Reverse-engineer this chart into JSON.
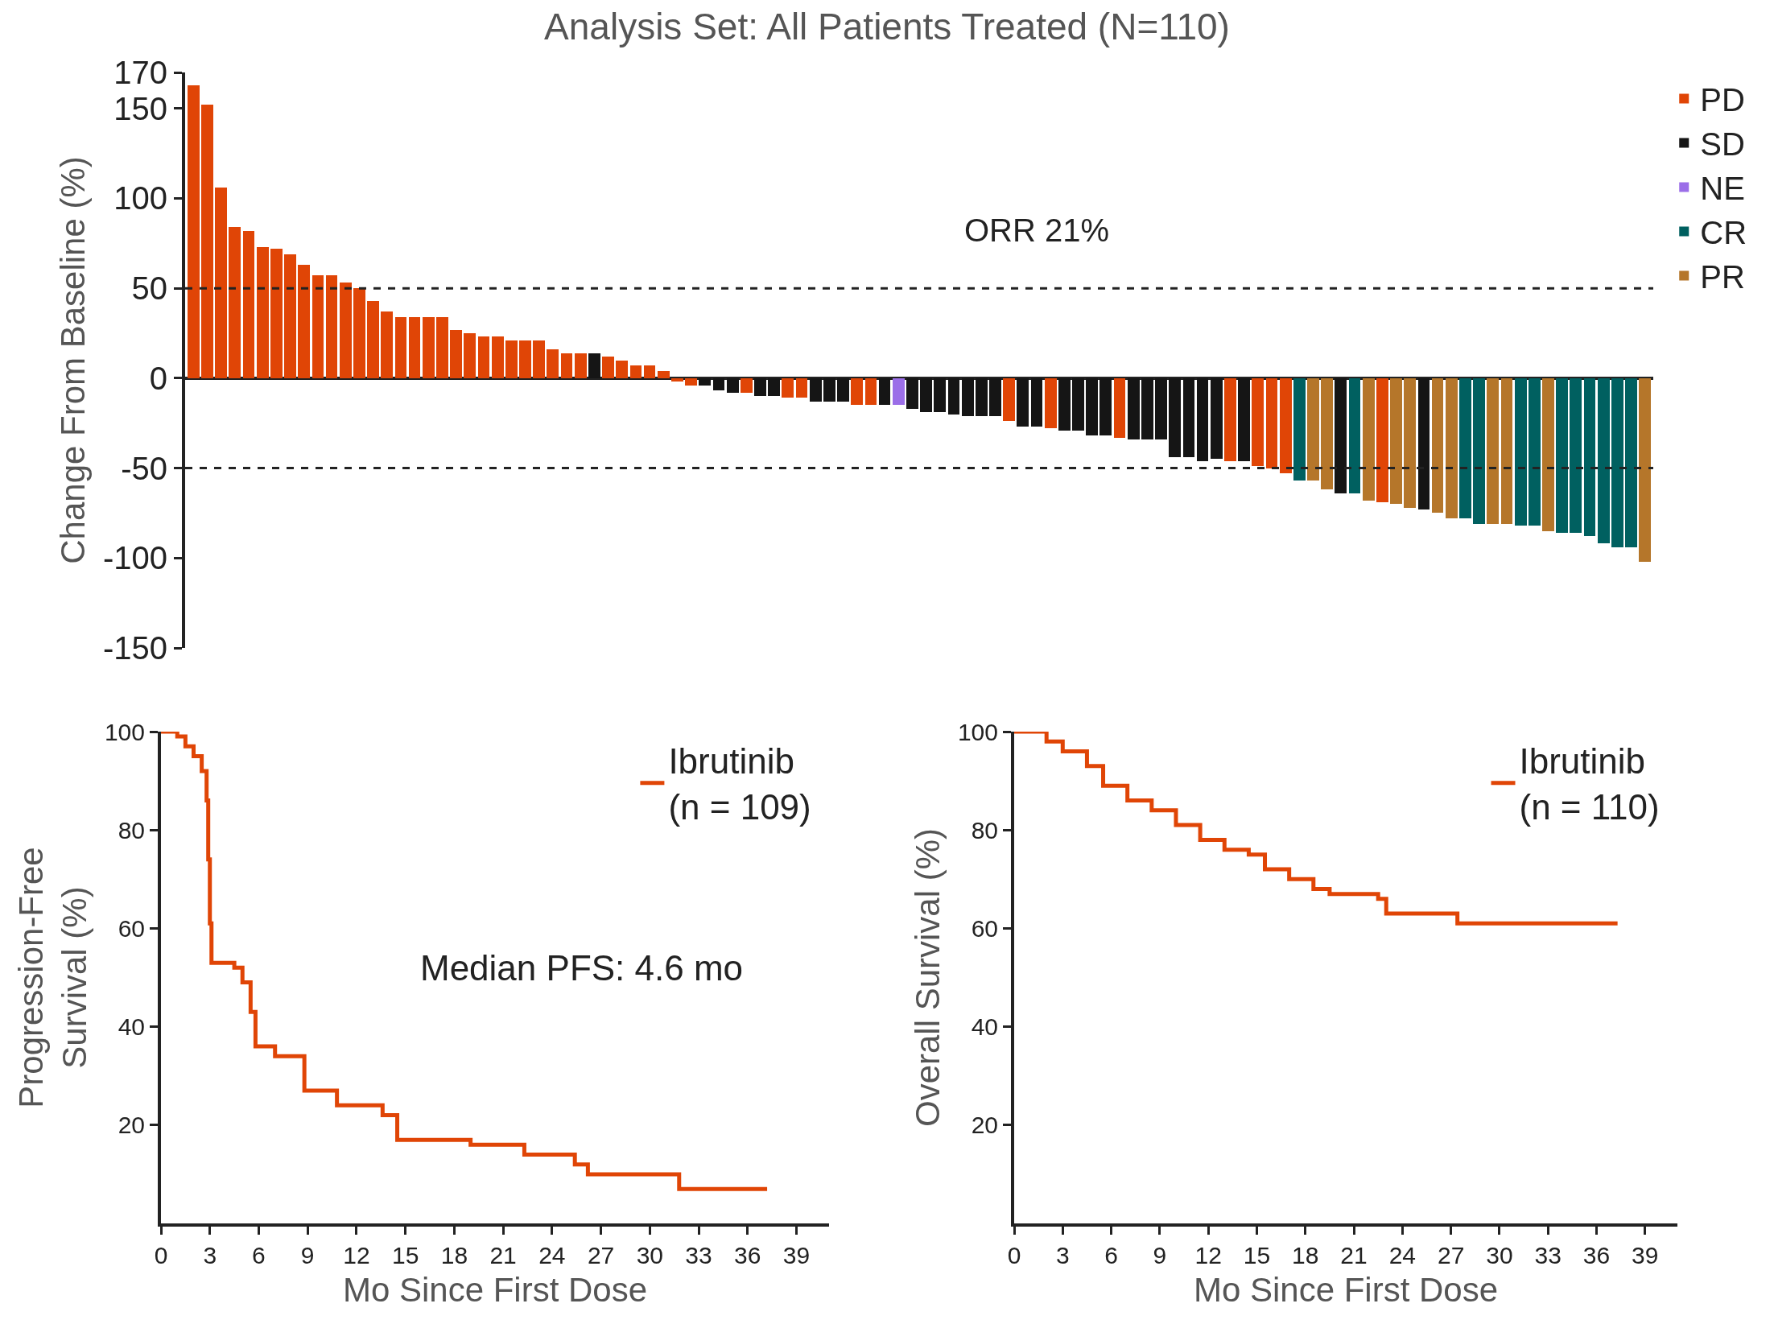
{
  "chart_data": [
    {
      "type": "bar",
      "title": "Analysis Set: All Patients Treated (N=110)",
      "ylabel": "Change From Baseline (%)",
      "categories": [
        null,
        null,
        null,
        null,
        null,
        null,
        null,
        null,
        null,
        null,
        null,
        null,
        null,
        null,
        null,
        null,
        null,
        null,
        null,
        null,
        null,
        null,
        null,
        null,
        null,
        null,
        null,
        null,
        null,
        null,
        null,
        null,
        null,
        null,
        null,
        null,
        null,
        null,
        null,
        null,
        null,
        null,
        null,
        null,
        null,
        null,
        null,
        null,
        null,
        null,
        null,
        null,
        null,
        null,
        null,
        null,
        null,
        null,
        null,
        null,
        null,
        null,
        null,
        null,
        null,
        null,
        null,
        null,
        null,
        null,
        null,
        null,
        null,
        null,
        null,
        null,
        null,
        null,
        null,
        null,
        null,
        null,
        null,
        null,
        null,
        null,
        null,
        null,
        null,
        null,
        null,
        null,
        null,
        null,
        null,
        null,
        null,
        null,
        null,
        null,
        null,
        null,
        null,
        null,
        null,
        null
      ],
      "series": [
        {
          "name": "PD",
          "color": "#e04506",
          "values": [
            163,
            152,
            106,
            84,
            82,
            73,
            72,
            69,
            63,
            57,
            57,
            53,
            50,
            43,
            37,
            34,
            34,
            34,
            34,
            27,
            25,
            23,
            23,
            21,
            21,
            21,
            16,
            14,
            14,
            null,
            12,
            10,
            7,
            7,
            4,
            -2,
            -4,
            null,
            null,
            null,
            -8,
            null,
            null,
            -11,
            -11,
            null,
            null,
            null,
            -15,
            -15,
            null,
            null,
            null,
            null,
            null,
            null,
            null,
            null,
            null,
            -24,
            null,
            null,
            -28,
            null,
            null,
            null,
            null,
            -33,
            null,
            null,
            null,
            null,
            null,
            null,
            null,
            -46,
            null,
            -49,
            -50,
            -53,
            null,
            null,
            null,
            null,
            null,
            null,
            -69,
            null,
            null,
            null,
            null,
            null,
            null,
            null,
            null,
            null,
            null,
            null,
            null,
            null,
            null,
            null,
            null,
            null,
            null,
            null
          ]
        },
        {
          "name": "SD",
          "color": "#151515",
          "values": [
            null,
            null,
            null,
            null,
            null,
            null,
            null,
            null,
            null,
            null,
            null,
            null,
            null,
            null,
            null,
            null,
            null,
            null,
            null,
            null,
            null,
            null,
            null,
            null,
            null,
            null,
            null,
            null,
            null,
            14,
            null,
            null,
            null,
            null,
            null,
            null,
            null,
            -4,
            -7,
            -8,
            null,
            -10,
            -10,
            null,
            null,
            -13,
            -13,
            -13,
            null,
            null,
            -15,
            null,
            -17,
            -19,
            -19,
            -20,
            -21,
            -21,
            -21,
            null,
            -27,
            -27,
            null,
            -29,
            -29,
            -32,
            -32,
            null,
            -34,
            -34,
            -34,
            -44,
            -44,
            -46,
            -45,
            null,
            -46,
            null,
            null,
            null,
            null,
            null,
            null,
            -64,
            null,
            null,
            null,
            null,
            null,
            -73,
            null,
            null,
            null,
            null,
            null,
            null,
            null,
            null,
            null,
            null,
            null,
            null,
            null,
            null,
            null,
            null
          ]
        },
        {
          "name": "NE",
          "color": "#9b6ee8",
          "values": [
            null,
            null,
            null,
            null,
            null,
            null,
            null,
            null,
            null,
            null,
            null,
            null,
            null,
            null,
            null,
            null,
            null,
            null,
            null,
            null,
            null,
            null,
            null,
            null,
            null,
            null,
            null,
            null,
            null,
            null,
            null,
            null,
            null,
            null,
            null,
            null,
            null,
            null,
            null,
            null,
            null,
            null,
            null,
            null,
            null,
            null,
            null,
            null,
            null,
            null,
            null,
            -15,
            null,
            null,
            null,
            null,
            null,
            null,
            null,
            null,
            null,
            null,
            null,
            null,
            null,
            null,
            null,
            null,
            null,
            null,
            null,
            null,
            null,
            null,
            null,
            null,
            null,
            null,
            null,
            null,
            null,
            null,
            null,
            null,
            null,
            null,
            null,
            null,
            null,
            null,
            null,
            null,
            null,
            null,
            null,
            null,
            null,
            null,
            null,
            null,
            null,
            null,
            null,
            null,
            null,
            null
          ]
        },
        {
          "name": "CR",
          "color": "#006060",
          "values": [
            null,
            null,
            null,
            null,
            null,
            null,
            null,
            null,
            null,
            null,
            null,
            null,
            null,
            null,
            null,
            null,
            null,
            null,
            null,
            null,
            null,
            null,
            null,
            null,
            null,
            null,
            null,
            null,
            null,
            null,
            null,
            null,
            null,
            null,
            null,
            null,
            null,
            null,
            null,
            null,
            null,
            null,
            null,
            null,
            null,
            null,
            null,
            null,
            null,
            null,
            null,
            null,
            null,
            null,
            null,
            null,
            null,
            null,
            null,
            null,
            null,
            null,
            null,
            null,
            null,
            null,
            null,
            null,
            null,
            null,
            null,
            null,
            null,
            null,
            null,
            null,
            null,
            null,
            null,
            null,
            -57,
            null,
            null,
            null,
            -64,
            null,
            null,
            null,
            null,
            null,
            null,
            null,
            -78,
            -81,
            null,
            null,
            -82,
            -82,
            null,
            -86,
            -86,
            -88,
            -92,
            -94,
            -94,
            null
          ]
        },
        {
          "name": "PR",
          "color": "#b5762a",
          "values": [
            null,
            null,
            null,
            null,
            null,
            null,
            null,
            null,
            null,
            null,
            null,
            null,
            null,
            null,
            null,
            null,
            null,
            null,
            null,
            null,
            null,
            null,
            null,
            null,
            null,
            null,
            null,
            null,
            null,
            null,
            null,
            null,
            null,
            null,
            null,
            null,
            null,
            null,
            null,
            null,
            null,
            null,
            null,
            null,
            null,
            null,
            null,
            null,
            null,
            null,
            null,
            null,
            null,
            null,
            null,
            null,
            null,
            null,
            null,
            null,
            null,
            null,
            null,
            null,
            null,
            null,
            null,
            null,
            null,
            null,
            null,
            null,
            null,
            null,
            null,
            null,
            null,
            null,
            null,
            null,
            null,
            -57,
            -62,
            null,
            null,
            -68,
            null,
            -70,
            -72,
            null,
            -75,
            -78,
            null,
            null,
            -81,
            -81,
            null,
            null,
            -85,
            null,
            null,
            null,
            null,
            null,
            null,
            -102
          ]
        }
      ],
      "ylim": [
        -150,
        170
      ],
      "yticks": [
        -150,
        -100,
        -50,
        0,
        50,
        100,
        150,
        170
      ],
      "ref_lines": [
        {
          "axis": "y",
          "value": 50,
          "line_style": "dashed",
          "color": "#222222"
        },
        {
          "axis": "y",
          "value": -50,
          "line_style": "dashed",
          "color": "#222222"
        }
      ],
      "annotations": [
        "ORR 21%"
      ],
      "legend": "right",
      "tick_labels": "y",
      "grid": false
    },
    {
      "type": "step",
      "xlabel": "Mo Since First Dose",
      "ylabel": "Progression-Free\nSurvival (%)",
      "series": [
        {
          "name": "Ibrutinib\n(n = 109)",
          "color": "#e04506",
          "x": [
            0,
            1,
            1.5,
            2,
            2.5,
            2.8,
            2.9,
            3,
            3.1,
            4.5,
            5,
            5.5,
            5.8,
            7,
            8.8,
            10.8,
            13.6,
            14.5,
            19,
            22.3,
            25.4,
            26.2,
            31.8,
            37.2
          ],
          "values": [
            100,
            99,
            97,
            95,
            92,
            86,
            74,
            61,
            53,
            52,
            49,
            43,
            36,
            34,
            27,
            24,
            22,
            17,
            16,
            14,
            12,
            10,
            7,
            7
          ]
        }
      ],
      "xlim": [
        0,
        41
      ],
      "xticks": [
        0,
        3,
        6,
        9,
        12,
        15,
        18,
        21,
        24,
        27,
        30,
        33,
        36,
        39
      ],
      "ylim": [
        0,
        100
      ],
      "yticks": [
        20,
        40,
        60,
        80,
        100
      ],
      "annotations": [
        "Median PFS: 4.6 mo"
      ],
      "legend": "top right",
      "grid": false
    },
    {
      "type": "step",
      "xlabel": "Mo Since First Dose",
      "ylabel": "Overall Survival (%)",
      "series": [
        {
          "name": "Ibrutinib\n(n = 110)",
          "color": "#e04506",
          "x": [
            0,
            1,
            2,
            3,
            4.5,
            5.5,
            7,
            8.5,
            10,
            11.5,
            13,
            14.5,
            15.5,
            17,
            18.5,
            19.5,
            22.5,
            23,
            27.4,
            37.3
          ],
          "values": [
            100,
            100,
            98,
            96,
            93,
            89,
            86,
            84,
            81,
            78,
            76,
            75,
            72,
            70,
            68,
            67,
            66,
            63,
            61,
            61
          ]
        }
      ],
      "xlim": [
        0,
        41
      ],
      "xticks": [
        0,
        3,
        6,
        9,
        12,
        15,
        18,
        21,
        24,
        27,
        30,
        33,
        36,
        39
      ],
      "ylim": [
        0,
        100
      ],
      "yticks": [
        20,
        40,
        60,
        80,
        100
      ],
      "legend": "top right",
      "grid": false
    }
  ]
}
